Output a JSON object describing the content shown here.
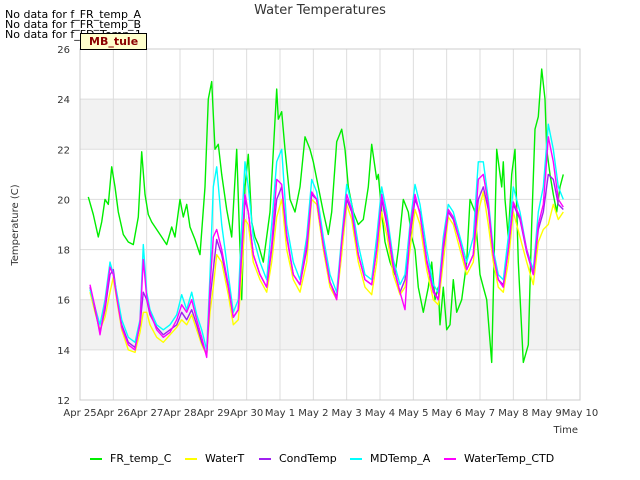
{
  "no_data_messages": [
    "No data for f_FR_temp_A",
    "No data for f_FR_temp_B",
    "No data for f_FD_Temp_1"
  ],
  "site_label": "MB_tule",
  "chart_data": {
    "type": "line",
    "title": "Water Temperatures",
    "xlabel": "Time",
    "ylabel": "Temperature (C)",
    "ylim": [
      12,
      26
    ],
    "yticks": [
      12,
      14,
      16,
      18,
      20,
      22,
      24,
      26
    ],
    "xlim": [
      0,
      15
    ],
    "xticks": [
      0,
      1,
      2,
      3,
      4,
      5,
      6,
      7,
      8,
      9,
      10,
      11,
      12,
      13,
      14,
      15
    ],
    "xtick_labels": [
      "Apr 25",
      "Apr 26",
      "Apr 27",
      "Apr 28",
      "Apr 29",
      "Apr 30",
      "May 1",
      "May 2",
      "May 3",
      "May 4",
      "May 5",
      "May 6",
      "May 7",
      "May 8",
      "May 9",
      "May 10"
    ],
    "x_unit": "days since Apr 25",
    "grid": true,
    "legend_position": "bottom",
    "series": [
      {
        "name": "FR_temp_C",
        "color": "#00ee00",
        "x": [
          0.25,
          0.4,
          0.55,
          0.65,
          0.75,
          0.85,
          0.95,
          1.05,
          1.15,
          1.3,
          1.45,
          1.6,
          1.75,
          1.85,
          1.95,
          2.05,
          2.15,
          2.3,
          2.45,
          2.6,
          2.75,
          2.85,
          2.95,
          3.0,
          3.1,
          3.2,
          3.3,
          3.45,
          3.6,
          3.75,
          3.85,
          3.95,
          4.05,
          4.15,
          4.25,
          4.4,
          4.55,
          4.7,
          4.85,
          4.95,
          5.05,
          5.15,
          5.25,
          5.35,
          5.5,
          5.7,
          5.9,
          5.95,
          6.05,
          6.15,
          6.3,
          6.45,
          6.6,
          6.75,
          6.9,
          7.0,
          7.15,
          7.3,
          7.45,
          7.55,
          7.7,
          7.85,
          7.95,
          8.05,
          8.2,
          8.35,
          8.5,
          8.65,
          8.75,
          8.9,
          8.95,
          9.05,
          9.15,
          9.3,
          9.45,
          9.55,
          9.7,
          9.85,
          9.95,
          10.05,
          10.15,
          10.3,
          10.45,
          10.55,
          10.65,
          10.75,
          10.8,
          10.9,
          11.0,
          11.1,
          11.2,
          11.3,
          11.45,
          11.6,
          11.7,
          11.85,
          12.0,
          12.1,
          12.2,
          12.35,
          12.5,
          12.65,
          12.7,
          12.75,
          12.85,
          12.95,
          13.05,
          13.15,
          13.3,
          13.45,
          13.55,
          13.65,
          13.75,
          13.85,
          13.95,
          14.0,
          14.1,
          14.2,
          14.3,
          14.4,
          14.5
        ],
        "y": [
          20.1,
          19.4,
          18.5,
          19.1,
          20.0,
          19.8,
          21.3,
          20.5,
          19.5,
          18.6,
          18.3,
          18.2,
          19.3,
          21.9,
          20.2,
          19.4,
          19.1,
          18.8,
          18.5,
          18.2,
          18.9,
          18.5,
          19.5,
          20.0,
          19.3,
          19.8,
          18.9,
          18.4,
          17.8,
          20.5,
          24.0,
          24.7,
          22.0,
          22.2,
          21.0,
          19.6,
          18.5,
          22.0,
          16.0,
          20.5,
          21.8,
          19.1,
          18.5,
          18.2,
          17.5,
          19.5,
          24.4,
          23.2,
          23.5,
          22.0,
          20.0,
          19.5,
          20.5,
          22.5,
          22.0,
          21.5,
          20.5,
          19.5,
          18.6,
          19.5,
          22.3,
          22.8,
          22.0,
          20.5,
          19.5,
          19.0,
          19.2,
          20.5,
          22.2,
          20.8,
          21.0,
          19.5,
          18.3,
          17.5,
          17.0,
          18.0,
          20.0,
          19.5,
          18.5,
          18.0,
          16.5,
          15.5,
          16.5,
          17.5,
          16.0,
          16.5,
          15.0,
          16.5,
          14.8,
          15.0,
          16.8,
          15.5,
          16.0,
          17.5,
          20.0,
          19.5,
          17.0,
          16.5,
          16.0,
          13.5,
          22.0,
          20.5,
          21.5,
          20.0,
          18.5,
          21.0,
          22.0,
          17.5,
          13.5,
          14.2,
          19.0,
          22.8,
          23.3,
          25.2,
          24.0,
          22.0,
          21.0,
          20.2,
          19.5,
          20.5,
          21.0
        ]
      },
      {
        "name": "WaterT",
        "color": "#ffff00",
        "x": [
          0.3,
          0.45,
          0.6,
          0.75,
          0.9,
          1.0,
          1.1,
          1.25,
          1.45,
          1.65,
          1.8,
          1.9,
          2.0,
          2.1,
          2.3,
          2.5,
          2.7,
          2.9,
          3.05,
          3.2,
          3.35,
          3.5,
          3.65,
          3.8,
          3.9,
          4.0,
          4.1,
          4.25,
          4.45,
          4.6,
          4.75,
          4.85,
          4.95,
          5.05,
          5.2,
          5.4,
          5.6,
          5.75,
          5.9,
          6.05,
          6.2,
          6.4,
          6.6,
          6.8,
          6.95,
          7.1,
          7.3,
          7.5,
          7.7,
          7.85,
          8.0,
          8.15,
          8.35,
          8.55,
          8.75,
          8.9,
          9.05,
          9.2,
          9.4,
          9.6,
          9.75,
          9.9,
          10.05,
          10.2,
          10.4,
          10.6,
          10.75,
          10.9,
          11.05,
          11.2,
          11.4,
          11.6,
          11.8,
          11.95,
          12.1,
          12.25,
          12.4,
          12.55,
          12.7,
          12.85,
          13.0,
          13.2,
          13.4,
          13.6,
          13.75,
          13.9,
          14.05,
          14.2,
          14.35,
          14.5
        ],
        "y": [
          16.3,
          15.5,
          14.8,
          15.3,
          16.3,
          16.9,
          16.0,
          14.8,
          14.0,
          13.9,
          14.7,
          15.5,
          15.5,
          15.0,
          14.5,
          14.3,
          14.6,
          14.9,
          15.2,
          15.0,
          15.4,
          14.8,
          14.2,
          13.8,
          15.5,
          16.5,
          17.8,
          17.5,
          16.2,
          15.0,
          15.2,
          17.0,
          19.2,
          19.0,
          17.5,
          16.8,
          16.3,
          17.5,
          19.3,
          20.0,
          18.0,
          16.8,
          16.3,
          17.5,
          20.0,
          19.8,
          18.0,
          16.5,
          16.0,
          17.8,
          19.8,
          19.2,
          17.5,
          16.5,
          16.2,
          17.5,
          19.5,
          18.6,
          17.0,
          16.2,
          16.5,
          18.0,
          19.6,
          19.0,
          17.2,
          16.0,
          15.8,
          17.5,
          19.3,
          19.0,
          18.0,
          17.0,
          17.5,
          19.5,
          20.3,
          19.0,
          17.5,
          16.5,
          16.3,
          17.5,
          19.5,
          18.5,
          17.5,
          16.6,
          18.3,
          18.8,
          19.0,
          19.8,
          19.2,
          19.5
        ]
      },
      {
        "name": "CondTemp",
        "color": "#a020f0",
        "x": [
          0.3,
          0.45,
          0.6,
          0.75,
          0.9,
          1.0,
          1.1,
          1.25,
          1.45,
          1.65,
          1.8,
          1.9,
          2.0,
          2.1,
          2.3,
          2.5,
          2.7,
          2.9,
          3.05,
          3.2,
          3.35,
          3.5,
          3.65,
          3.8,
          3.9,
          4.0,
          4.1,
          4.25,
          4.45,
          4.6,
          4.75,
          4.85,
          4.95,
          5.05,
          5.2,
          5.4,
          5.6,
          5.75,
          5.9,
          6.05,
          6.2,
          6.4,
          6.6,
          6.8,
          6.95,
          7.1,
          7.3,
          7.5,
          7.7,
          7.85,
          8.0,
          8.15,
          8.35,
          8.55,
          8.75,
          8.9,
          9.05,
          9.2,
          9.4,
          9.6,
          9.75,
          9.9,
          10.05,
          10.2,
          10.4,
          10.6,
          10.75,
          10.9,
          11.05,
          11.2,
          11.4,
          11.6,
          11.8,
          11.95,
          12.1,
          12.25,
          12.4,
          12.55,
          12.7,
          12.85,
          13.0,
          13.2,
          13.4,
          13.6,
          13.75,
          13.9,
          14.05,
          14.2,
          14.35,
          14.5
        ],
        "y": [
          16.5,
          15.6,
          14.7,
          15.6,
          17.0,
          17.2,
          16.2,
          15.0,
          14.3,
          14.1,
          15.0,
          16.3,
          16.0,
          15.4,
          14.9,
          14.6,
          14.8,
          15.0,
          15.5,
          15.2,
          15.6,
          15.0,
          14.3,
          13.8,
          16.0,
          17.2,
          18.4,
          17.8,
          16.5,
          15.3,
          15.6,
          17.8,
          20.0,
          19.5,
          17.8,
          17.0,
          16.5,
          18.0,
          20.0,
          20.5,
          18.5,
          17.0,
          16.6,
          18.0,
          20.2,
          20.0,
          18.2,
          16.7,
          16.1,
          18.3,
          20.0,
          19.5,
          17.8,
          16.8,
          16.6,
          18.0,
          20.0,
          19.0,
          17.3,
          16.3,
          16.8,
          18.5,
          20.0,
          19.5,
          17.6,
          16.4,
          16.0,
          18.0,
          19.5,
          19.2,
          18.3,
          17.2,
          17.8,
          20.0,
          20.5,
          19.6,
          17.8,
          16.8,
          16.6,
          18.0,
          19.8,
          19.2,
          17.9,
          17.0,
          18.8,
          19.5,
          21.0,
          20.8,
          19.8,
          19.6
        ]
      },
      {
        "name": "MDTemp_A",
        "color": "#00ffff",
        "x": [
          0.3,
          0.45,
          0.6,
          0.75,
          0.9,
          1.0,
          1.1,
          1.25,
          1.45,
          1.65,
          1.8,
          1.9,
          2.0,
          2.1,
          2.3,
          2.5,
          2.7,
          2.9,
          3.05,
          3.2,
          3.35,
          3.5,
          3.65,
          3.8,
          3.9,
          4.0,
          4.1,
          4.25,
          4.45,
          4.6,
          4.75,
          4.85,
          4.95,
          5.05,
          5.2,
          5.4,
          5.6,
          5.75,
          5.9,
          6.05,
          6.2,
          6.4,
          6.6,
          6.8,
          6.95,
          7.1,
          7.3,
          7.5,
          7.7,
          7.85,
          8.0,
          8.15,
          8.35,
          8.55,
          8.75,
          8.9,
          9.05,
          9.2,
          9.4,
          9.6,
          9.75,
          9.9,
          10.05,
          10.2,
          10.4,
          10.6,
          10.75,
          10.9,
          11.05,
          11.2,
          11.4,
          11.6,
          11.8,
          11.95,
          12.1,
          12.25,
          12.4,
          12.55,
          12.7,
          12.85,
          13.0,
          13.2,
          13.4,
          13.6,
          13.75,
          13.9,
          14.05,
          14.2,
          14.35,
          14.5
        ],
        "y": [
          16.4,
          15.7,
          15.0,
          16.0,
          17.5,
          17.0,
          16.3,
          15.2,
          14.5,
          14.3,
          15.2,
          18.2,
          16.3,
          15.6,
          15.0,
          14.8,
          15.0,
          15.4,
          16.2,
          15.6,
          16.3,
          15.4,
          14.8,
          14.0,
          17.0,
          20.5,
          21.3,
          19.0,
          17.0,
          15.5,
          16.0,
          19.0,
          21.5,
          20.5,
          18.5,
          17.5,
          16.8,
          19.0,
          21.5,
          22.0,
          19.0,
          17.5,
          16.8,
          18.5,
          20.8,
          20.3,
          18.5,
          17.0,
          16.3,
          18.5,
          20.6,
          19.8,
          18.2,
          17.0,
          16.8,
          18.5,
          20.5,
          19.5,
          17.6,
          16.6,
          17.0,
          19.0,
          20.6,
          19.8,
          18.0,
          16.6,
          16.3,
          18.5,
          19.8,
          19.5,
          18.5,
          17.5,
          18.5,
          21.5,
          21.5,
          20.0,
          18.0,
          17.0,
          16.8,
          18.5,
          20.5,
          19.5,
          18.0,
          17.2,
          19.5,
          20.5,
          23.0,
          22.0,
          20.5,
          20.0
        ]
      },
      {
        "name": "WaterTemp_CTD",
        "color": "#ff00ff",
        "x": [
          0.3,
          0.45,
          0.6,
          0.75,
          0.9,
          1.0,
          1.1,
          1.25,
          1.45,
          1.65,
          1.8,
          1.9,
          2.0,
          2.1,
          2.3,
          2.5,
          2.7,
          2.9,
          3.05,
          3.2,
          3.35,
          3.5,
          3.65,
          3.8,
          3.9,
          4.0,
          4.1,
          4.25,
          4.45,
          4.6,
          4.75,
          4.85,
          4.95,
          5.05,
          5.2,
          5.4,
          5.6,
          5.75,
          5.9,
          6.05,
          6.2,
          6.4,
          6.6,
          6.8,
          6.95,
          7.1,
          7.3,
          7.5,
          7.7,
          7.85,
          8.0,
          8.15,
          8.35,
          8.55,
          8.75,
          8.9,
          9.05,
          9.2,
          9.4,
          9.6,
          9.75,
          9.9,
          10.05,
          10.2,
          10.4,
          10.6,
          10.75,
          10.9,
          11.05,
          11.2,
          11.4,
          11.6,
          11.8,
          11.95,
          12.1,
          12.25,
          12.4,
          12.55,
          12.7,
          12.85,
          13.0,
          13.2,
          13.4,
          13.6,
          13.75,
          13.9,
          14.05,
          14.2,
          14.35,
          14.5
        ],
        "y": [
          16.6,
          15.7,
          14.6,
          15.8,
          17.3,
          17.0,
          16.1,
          14.9,
          14.2,
          14.0,
          15.1,
          17.6,
          16.1,
          15.5,
          14.8,
          14.5,
          14.7,
          15.2,
          15.8,
          15.5,
          16.0,
          15.2,
          14.5,
          13.7,
          16.5,
          18.5,
          18.8,
          18.0,
          16.6,
          15.3,
          15.6,
          18.0,
          20.2,
          19.5,
          17.8,
          17.0,
          16.5,
          18.2,
          20.8,
          20.6,
          18.6,
          17.0,
          16.6,
          18.2,
          20.3,
          20.0,
          18.2,
          16.7,
          16.0,
          18.3,
          20.2,
          19.6,
          17.8,
          16.8,
          16.6,
          18.0,
          20.2,
          19.2,
          17.4,
          16.3,
          15.6,
          18.8,
          20.2,
          19.4,
          17.5,
          16.3,
          16.0,
          18.2,
          19.6,
          19.3,
          18.3,
          17.2,
          17.8,
          20.8,
          21.0,
          19.8,
          17.8,
          16.8,
          16.5,
          18.0,
          19.9,
          19.3,
          18.0,
          17.0,
          19.0,
          19.8,
          22.5,
          21.5,
          20.0,
          19.7
        ]
      }
    ]
  }
}
